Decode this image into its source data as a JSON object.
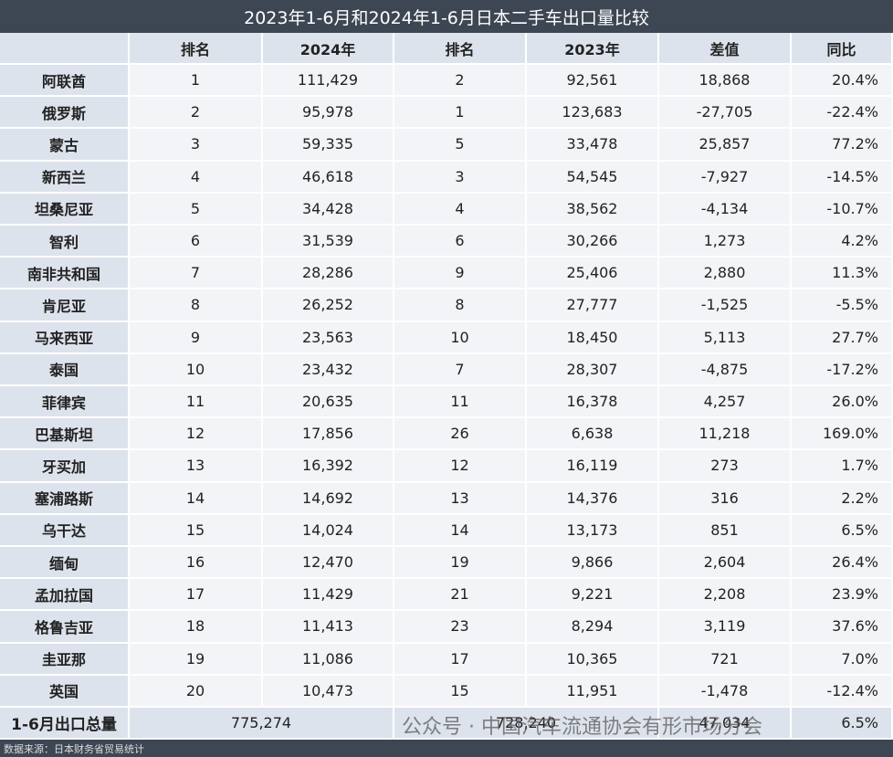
{
  "title": "2023年1-6月和2024年1-6月日本二手车出口量比较",
  "header": [
    "排名",
    "2024年",
    "排名",
    "2023年",
    "差值",
    "同比"
  ],
  "rows": [
    [
      "阿联酋",
      "1",
      "111,429",
      "2",
      "92,561",
      "18,868",
      "20.4%"
    ],
    [
      "俄罗斯",
      "2",
      "95,978",
      "1",
      "123,683",
      "-27,705",
      "-22.4%"
    ],
    [
      "蒙古",
      "3",
      "59,335",
      "5",
      "33,478",
      "25,857",
      "77.2%"
    ],
    [
      "新西兰",
      "4",
      "46,618",
      "3",
      "54,545",
      "-7,927",
      "-14.5%"
    ],
    [
      "坦桑尼亚",
      "5",
      "34,428",
      "4",
      "38,562",
      "-4,134",
      "-10.7%"
    ],
    [
      "智利",
      "6",
      "31,539",
      "6",
      "30,266",
      "1,273",
      "4.2%"
    ],
    [
      "南非共和国",
      "7",
      "28,286",
      "9",
      "25,406",
      "2,880",
      "11.3%"
    ],
    [
      "肯尼亚",
      "8",
      "26,252",
      "8",
      "27,777",
      "-1,525",
      "-5.5%"
    ],
    [
      "马来西亚",
      "9",
      "23,563",
      "10",
      "18,450",
      "5,113",
      "27.7%"
    ],
    [
      "泰国",
      "10",
      "23,432",
      "7",
      "28,307",
      "-4,875",
      "-17.2%"
    ],
    [
      "菲律宾",
      "11",
      "20,635",
      "11",
      "16,378",
      "4,257",
      "26.0%"
    ],
    [
      "巴基斯坦",
      "12",
      "17,856",
      "26",
      "6,638",
      "11,218",
      "169.0%"
    ],
    [
      "牙买加",
      "13",
      "16,392",
      "12",
      "16,119",
      "273",
      "1.7%"
    ],
    [
      "塞浦路斯",
      "14",
      "14,692",
      "13",
      "14,376",
      "316",
      "2.2%"
    ],
    [
      "乌干达",
      "15",
      "14,024",
      "14",
      "13,173",
      "851",
      "6.5%"
    ],
    [
      "缅甸",
      "16",
      "12,470",
      "19",
      "9,866",
      "2,604",
      "26.4%"
    ],
    [
      "孟加拉国",
      "17",
      "11,429",
      "21",
      "9,221",
      "2,208",
      "23.9%"
    ],
    [
      "格鲁吉亚",
      "18",
      "11,413",
      "23",
      "8,294",
      "3,119",
      "37.6%"
    ],
    [
      "圭亚那",
      "19",
      "11,086",
      "17",
      "10,365",
      "721",
      "7.0%"
    ],
    [
      "英国",
      "20",
      "10,473",
      "15",
      "11,951",
      "-1,478",
      "-12.4%"
    ]
  ],
  "total": {
    "label": "1-6月出口总量",
    "v2024": "775,274",
    "v2023": "728,240",
    "diff": "47,034",
    "yoy": "6.5%"
  },
  "source": "数据来源：日本财务省贸易统计",
  "watermark": "公众号 · 中国汽车流通协会有形市场分会"
}
